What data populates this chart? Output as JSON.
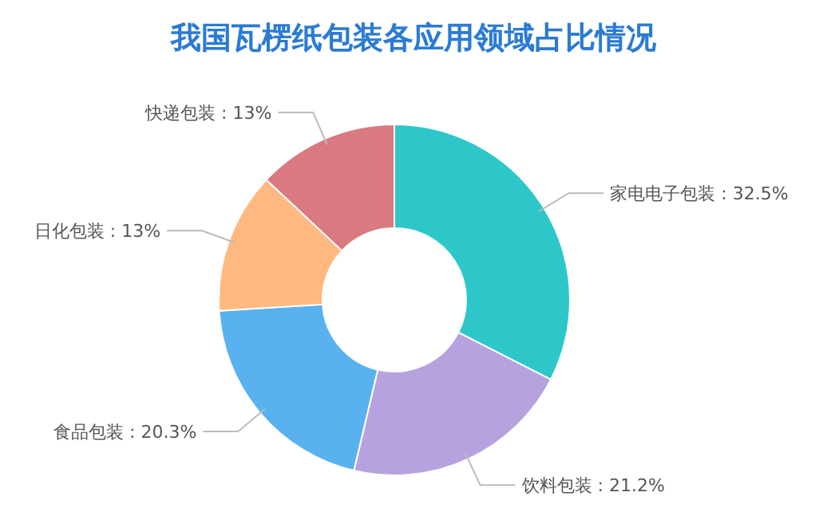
{
  "chart_data": {
    "type": "donut",
    "title": "我国瓦楞纸包装各应用领域占比情况",
    "categories": [
      "家电电子包装",
      "饮料包装",
      "食品包装",
      "日化包装",
      "快递包装"
    ],
    "values": [
      32.5,
      21.2,
      20.3,
      13,
      13
    ],
    "value_labels": [
      "32.5%",
      "21.2%",
      "20.3%",
      "13%",
      "13%"
    ],
    "colors": [
      "#2ec7c9",
      "#b6a2de",
      "#5ab1ef",
      "#ffb980",
      "#d87a80"
    ]
  }
}
